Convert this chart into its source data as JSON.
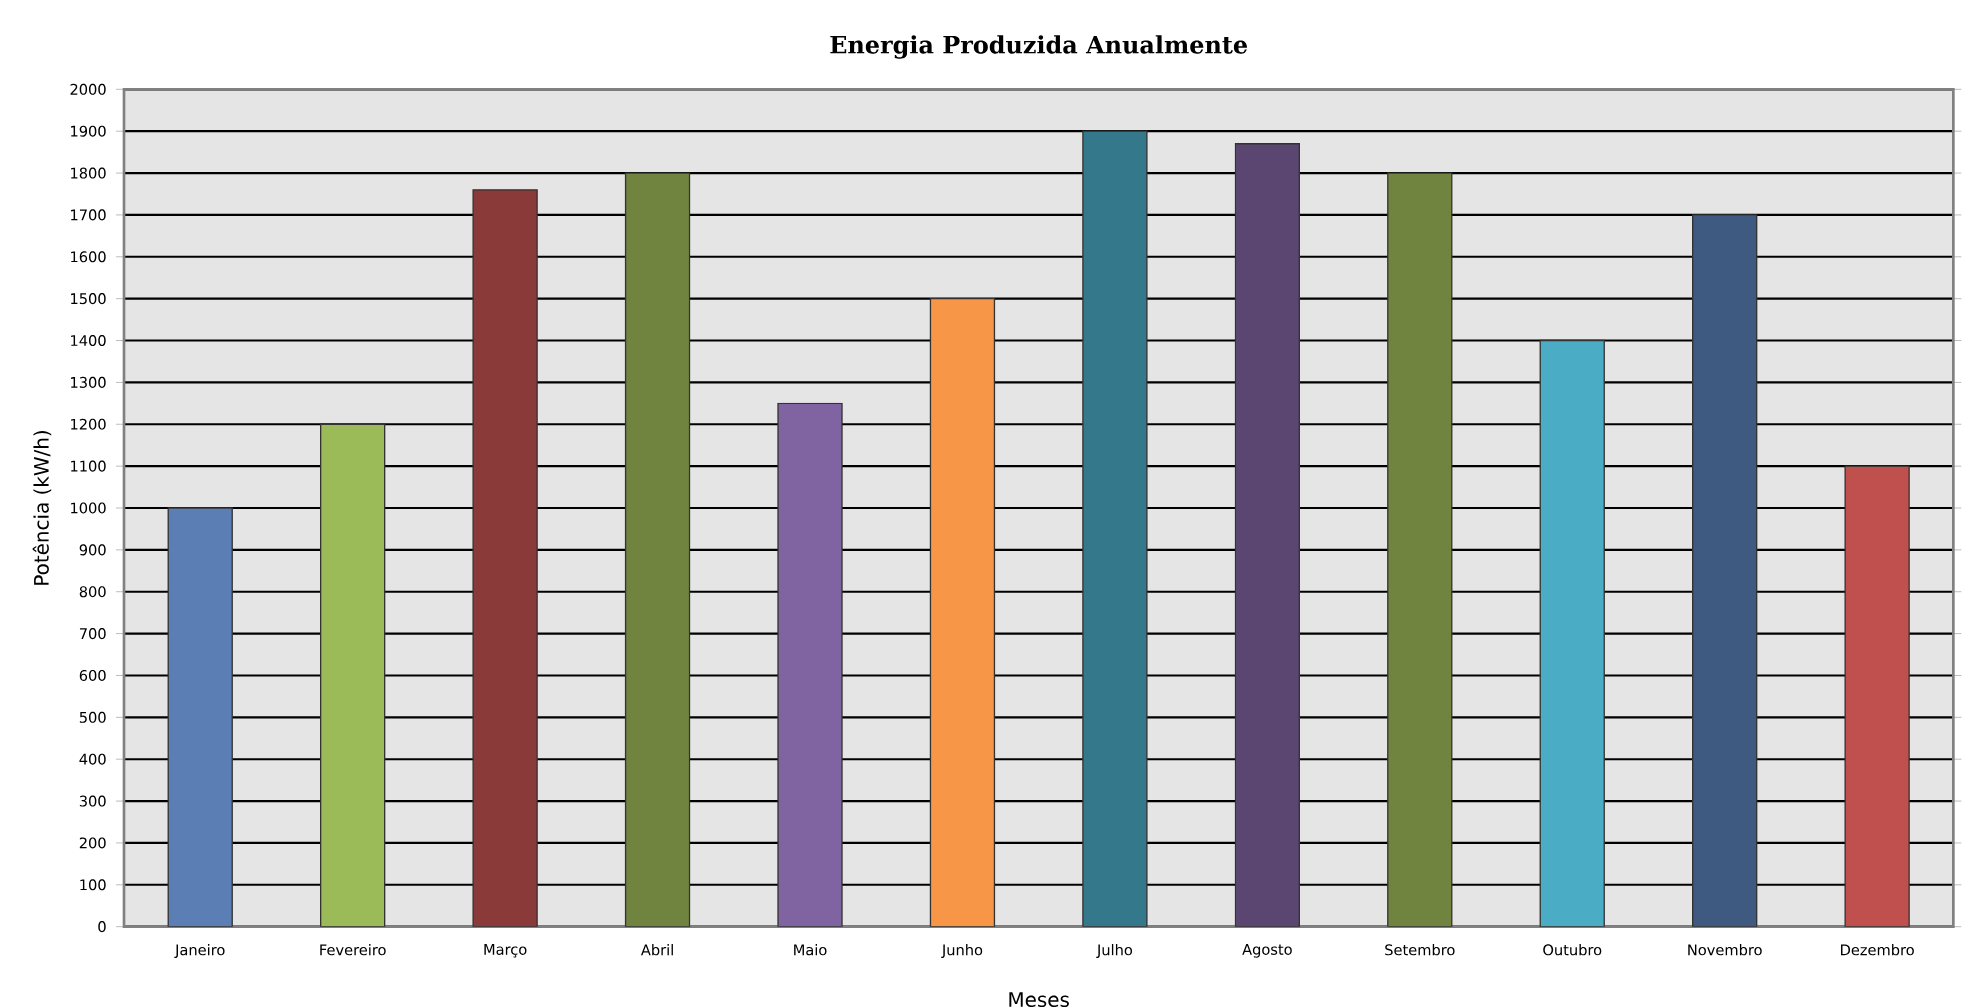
{
  "chart_data": {
    "type": "bar",
    "title": "Energia Produzida Anualmente",
    "xlabel": "Meses",
    "ylabel": "Potência (kW/h)",
    "categories": [
      "Janeiro",
      "Fevereiro",
      "Março",
      "Abril",
      "Maio",
      "Junho",
      "Julho",
      "Agosto",
      "Setembro",
      "Outubro",
      "Novembro",
      "Dezembro"
    ],
    "values": [
      1000,
      1200,
      1760,
      1800,
      1250,
      1500,
      1900,
      1870,
      1800,
      1400,
      1700,
      1100
    ],
    "colors": [
      "#5b7fb5",
      "#9bbb59",
      "#8b3a3a",
      "#71843f",
      "#8064a2",
      "#f79646",
      "#34788c",
      "#5a4670",
      "#71843f",
      "#4bacc6",
      "#3e5a80",
      "#c0504d"
    ],
    "ylim": [
      0,
      2000
    ],
    "yticks": [
      0,
      100,
      200,
      300,
      400,
      500,
      600,
      700,
      800,
      900,
      1000,
      1100,
      1200,
      1300,
      1400,
      1500,
      1600,
      1700,
      1800,
      1900,
      2000
    ],
    "grid": "y"
  }
}
